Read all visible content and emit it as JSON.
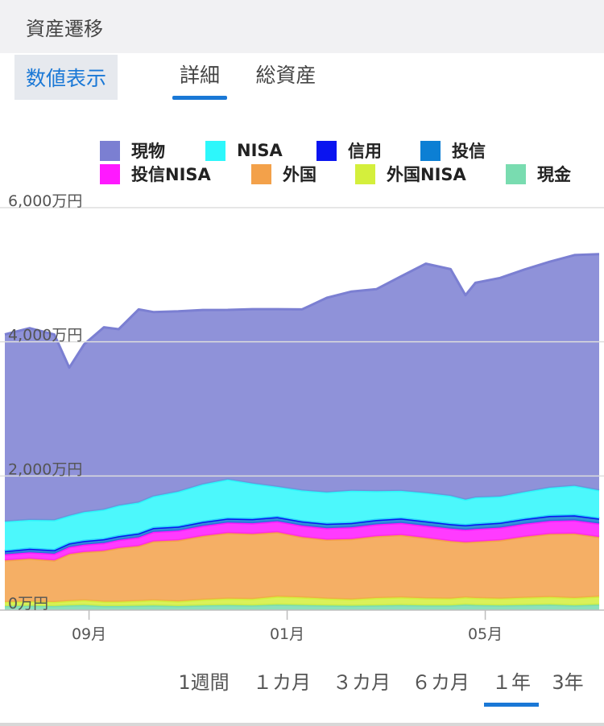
{
  "header": {
    "title": "資産遷移"
  },
  "toolbar": {
    "toggle_label": "数値表示",
    "tabs": [
      {
        "label": "詳細",
        "active": true
      },
      {
        "label": "総資産",
        "active": false
      }
    ]
  },
  "periods": [
    {
      "label": "1週間",
      "active": false
    },
    {
      "label": "１カ月",
      "active": false
    },
    {
      "label": "３カ月",
      "active": false
    },
    {
      "label": "６カ月",
      "active": false
    },
    {
      "label": "１年",
      "active": true
    },
    {
      "label": "3年",
      "active": false
    }
  ],
  "colors": {
    "accent": "#1a78d6"
  },
  "chart_data": {
    "type": "area",
    "stacked": true,
    "legend_position": "top",
    "grid": true,
    "unit": "万円",
    "ylim": [
      0,
      6000
    ],
    "y_ticks": [
      {
        "value": 0,
        "label": "0万円"
      },
      {
        "value": 2000,
        "label": "2,000万円"
      },
      {
        "value": 4000,
        "label": "4,000万円"
      },
      {
        "value": 6000,
        "label": "6,000万円"
      }
    ],
    "x_ticks": [
      {
        "month": 1.7,
        "label": "09月"
      },
      {
        "month": 5.7,
        "label": "01月"
      },
      {
        "month": 9.7,
        "label": "05月"
      }
    ],
    "x_range": [
      0,
      12
    ],
    "x": [
      0,
      0.5,
      1,
      1.3,
      1.6,
      2,
      2.3,
      2.7,
      3,
      3.5,
      4,
      4.5,
      5,
      5.5,
      6,
      6.5,
      7,
      7.5,
      8,
      8.5,
      9,
      9.3,
      9.5,
      10,
      10.5,
      11,
      11.5,
      12
    ],
    "series": [
      {
        "name": "現金",
        "color": "#79dcb0",
        "values": [
          60,
          65,
          60,
          70,
          75,
          60,
          60,
          65,
          70,
          60,
          70,
          75,
          70,
          80,
          75,
          70,
          65,
          70,
          75,
          70,
          70,
          80,
          75,
          70,
          75,
          80,
          70,
          80
        ]
      },
      {
        "name": "外国NISA",
        "color": "#d4ef3c",
        "values": [
          60,
          62,
          60,
          65,
          70,
          65,
          65,
          70,
          75,
          70,
          85,
          95,
          95,
          120,
          115,
          100,
          95,
          110,
          115,
          105,
          100,
          110,
          105,
          100,
          110,
          115,
          110,
          120
        ]
      },
      {
        "name": "外国",
        "color": "#f3a14a",
        "values": [
          620,
          640,
          620,
          700,
          720,
          760,
          800,
          820,
          880,
          910,
          950,
          980,
          970,
          960,
          900,
          880,
          900,
          920,
          930,
          900,
          860,
          820,
          840,
          870,
          910,
          940,
          960,
          890
        ]
      },
      {
        "name": "投信NISA",
        "color": "#ff19ff",
        "values": [
          90,
          95,
          100,
          105,
          110,
          115,
          120,
          130,
          140,
          145,
          150,
          155,
          160,
          165,
          170,
          172,
          175,
          178,
          180,
          182,
          184,
          186,
          188,
          190,
          192,
          195,
          198,
          200
        ]
      },
      {
        "name": "投信",
        "color": "#0c7fd4",
        "values": [
          50,
          52,
          54,
          55,
          56,
          57,
          58,
          58,
          59,
          60,
          60,
          61,
          62,
          62,
          63,
          64,
          65,
          66,
          67,
          68,
          69,
          70,
          71,
          72,
          73,
          74,
          75,
          76
        ]
      },
      {
        "name": "信用",
        "color": "#0a14f0",
        "values": [
          0,
          0,
          0,
          0,
          0,
          0,
          0,
          0,
          0,
          0,
          0,
          0,
          0,
          0,
          0,
          0,
          0,
          0,
          0,
          0,
          0,
          0,
          0,
          0,
          0,
          0,
          0,
          0
        ]
      },
      {
        "name": "NISA",
        "color": "#2df7fb",
        "values": [
          440,
          430,
          445,
          410,
          430,
          440,
          455,
          460,
          470,
          520,
          560,
          580,
          530,
          450,
          460,
          470,
          480,
          430,
          410,
          420,
          420,
          380,
          400,
          390,
          400,
          420,
          440,
          420
        ]
      },
      {
        "name": "現物",
        "color": "#7b7fd2",
        "values": [
          2790,
          2860,
          2770,
          2210,
          2500,
          2720,
          2630,
          2880,
          2750,
          2690,
          2600,
          2530,
          2600,
          2650,
          2700,
          2900,
          2970,
          3010,
          3200,
          3420,
          3380,
          3050,
          3200,
          3260,
          3320,
          3370,
          3440,
          3520
        ]
      }
    ],
    "total_line_color": "#6b6fcf"
  }
}
